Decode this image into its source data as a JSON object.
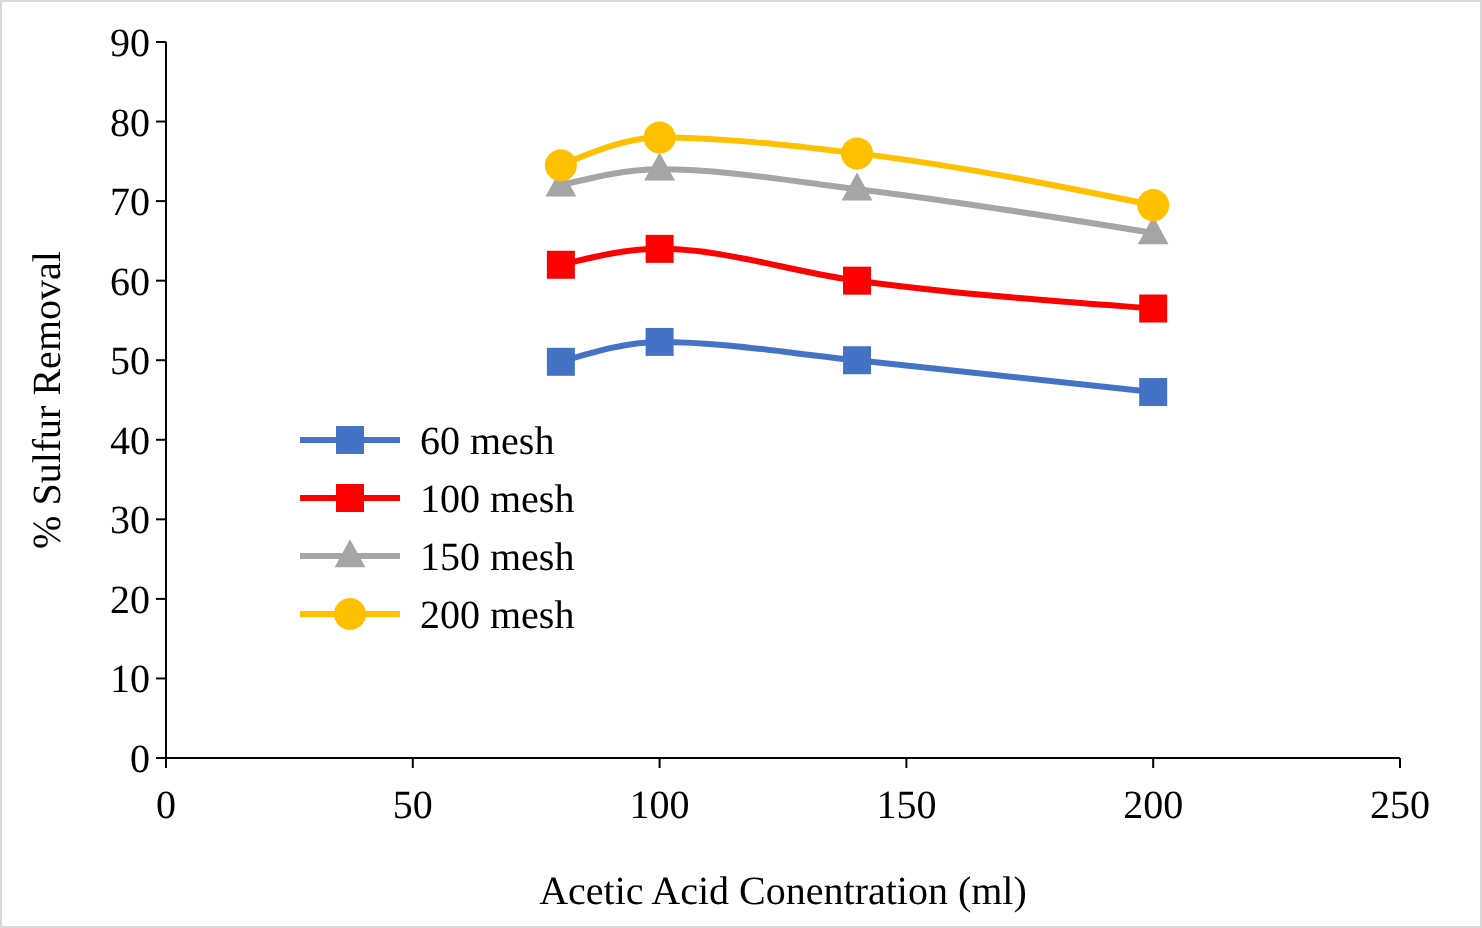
{
  "chart_data": {
    "type": "line",
    "xlabel": "Acetic Acid Conentration (ml)",
    "ylabel": "% Sulfur Removal",
    "x": [
      80,
      100,
      140,
      200
    ],
    "series": [
      {
        "name": "60 mesh",
        "color": "#4472c4",
        "marker": "square",
        "values": [
          49.8,
          52.3,
          50,
          46
        ]
      },
      {
        "name": "100 mesh",
        "color": "#ff0000",
        "marker": "square",
        "values": [
          62,
          64,
          60,
          56.5
        ]
      },
      {
        "name": "150 mesh",
        "color": "#a5a5a5",
        "marker": "triangle",
        "values": [
          72,
          74,
          71.5,
          66
        ]
      },
      {
        "name": "200 mesh",
        "color": "#ffc000",
        "marker": "circle",
        "values": [
          74.5,
          78,
          76,
          69.5
        ]
      }
    ],
    "xlim": [
      0,
      250
    ],
    "xticks": [
      0,
      50,
      100,
      150,
      200,
      250
    ],
    "ylim": [
      0,
      90
    ],
    "yticks": [
      0,
      10,
      20,
      30,
      40,
      50,
      60,
      70,
      80,
      90
    ],
    "grid": false,
    "legend": "left",
    "line_style": "solid"
  }
}
